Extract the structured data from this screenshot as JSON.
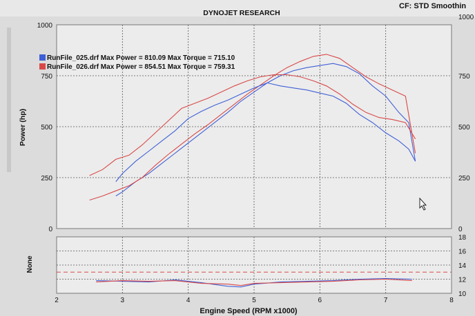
{
  "header": {
    "title": "DYNOJET RESEARCH",
    "status": "CF: STD  Smoothin"
  },
  "colors": {
    "background": "#dcdcdc",
    "plot_background": "#ececec",
    "grid": "#555555",
    "run_025": "#3f5fd6",
    "run_026": "#d94848",
    "afr_reference": "#d94848"
  },
  "chart_data": [
    {
      "type": "line",
      "title": "",
      "xlabel": "",
      "ylabel": "Power (hp)",
      "xlim": [
        2,
        8
      ],
      "ylim": [
        0,
        1000
      ],
      "y2lim": [
        0,
        1000
      ],
      "left_ticks": [
        "0",
        "250",
        "500",
        "750",
        "1000"
      ],
      "right_ticks": [
        "0",
        "250",
        "500",
        "750",
        "1000"
      ],
      "grid": true,
      "legend_position": "top-left",
      "legend": [
        {
          "swatch": "run_025",
          "text": "RunFile_025.drf Max Power = 810.09 Max Torque = 715.10"
        },
        {
          "swatch": "run_026",
          "text": "RunFile_026.drf Max Power = 854.51 Max Torque = 759.31"
        }
      ],
      "series": [
        {
          "run": "025",
          "measure": "power",
          "color": "#3f5fd6",
          "x": [
            2.9,
            3.0,
            3.2,
            3.4,
            3.6,
            3.8,
            4.0,
            4.2,
            4.4,
            4.6,
            4.8,
            5.0,
            5.2,
            5.4,
            5.6,
            5.8,
            6.0,
            6.2,
            6.4,
            6.6,
            6.8,
            7.0,
            7.2,
            7.35,
            7.45
          ],
          "y": [
            160,
            180,
            230,
            270,
            320,
            370,
            420,
            470,
            520,
            570,
            625,
            670,
            715,
            750,
            775,
            790,
            800,
            810,
            795,
            760,
            700,
            650,
            570,
            520,
            330
          ]
        },
        {
          "run": "026",
          "measure": "power",
          "color": "#d94848",
          "x": [
            2.5,
            2.7,
            2.9,
            3.1,
            3.3,
            3.5,
            3.7,
            3.9,
            4.1,
            4.3,
            4.5,
            4.7,
            4.9,
            5.1,
            5.3,
            5.5,
            5.7,
            5.9,
            6.1,
            6.3,
            6.5,
            6.7,
            6.9,
            7.1,
            7.3,
            7.45
          ],
          "y": [
            140,
            160,
            185,
            210,
            250,
            310,
            365,
            415,
            465,
            510,
            560,
            610,
            660,
            705,
            750,
            790,
            820,
            845,
            855,
            835,
            790,
            745,
            710,
            680,
            650,
            370
          ]
        },
        {
          "run": "025",
          "measure": "torque",
          "color": "#3f5fd6",
          "x": [
            2.9,
            3.0,
            3.2,
            3.4,
            3.6,
            3.8,
            4.0,
            4.2,
            4.4,
            4.6,
            4.8,
            5.0,
            5.2,
            5.4,
            5.6,
            5.8,
            6.0,
            6.2,
            6.4,
            6.6,
            6.8,
            7.0,
            7.2,
            7.35,
            7.45
          ],
          "y": [
            230,
            270,
            330,
            380,
            430,
            480,
            540,
            575,
            605,
            630,
            660,
            690,
            715,
            700,
            690,
            680,
            665,
            650,
            615,
            560,
            520,
            470,
            430,
            390,
            330
          ]
        },
        {
          "run": "026",
          "measure": "torque",
          "color": "#d94848",
          "x": [
            2.5,
            2.7,
            2.9,
            3.1,
            3.3,
            3.5,
            3.7,
            3.9,
            4.1,
            4.3,
            4.5,
            4.7,
            4.9,
            5.1,
            5.3,
            5.5,
            5.7,
            5.9,
            6.1,
            6.3,
            6.5,
            6.7,
            6.9,
            7.1,
            7.3,
            7.45
          ],
          "y": [
            260,
            290,
            340,
            360,
            410,
            470,
            530,
            590,
            615,
            640,
            670,
            700,
            725,
            745,
            755,
            755,
            745,
            725,
            700,
            660,
            610,
            570,
            545,
            535,
            520,
            440
          ]
        }
      ]
    },
    {
      "type": "line",
      "title": "",
      "xlabel": "Engine Speed (RPM x1000)",
      "ylabel": "None",
      "xlim": [
        2,
        8
      ],
      "ylim": [
        10,
        18
      ],
      "x_ticks": [
        "2",
        "3",
        "4",
        "5",
        "6",
        "7",
        "8"
      ],
      "right_ticks": [
        "10",
        "12",
        "14",
        "16",
        "18"
      ],
      "grid": true,
      "reference_line": {
        "y": 13,
        "color": "#d94848"
      },
      "series": [
        {
          "run": "025",
          "color": "#3f5fd6",
          "x": [
            2.6,
            3.0,
            3.4,
            3.8,
            4.2,
            4.6,
            4.8,
            5.0,
            5.4,
            5.8,
            6.2,
            6.6,
            7.0,
            7.4
          ],
          "y": [
            11.8,
            11.7,
            11.6,
            11.9,
            11.5,
            11.0,
            10.9,
            11.3,
            11.6,
            11.7,
            11.8,
            12.0,
            12.1,
            12.0
          ]
        },
        {
          "run": "026",
          "color": "#d94848",
          "x": [
            2.6,
            3.0,
            3.4,
            3.8,
            4.2,
            4.6,
            4.8,
            5.0,
            5.4,
            5.8,
            6.2,
            6.6,
            7.0,
            7.4
          ],
          "y": [
            11.6,
            11.8,
            11.7,
            11.8,
            11.4,
            11.3,
            11.1,
            11.4,
            11.5,
            11.6,
            11.7,
            11.9,
            12.0,
            11.8
          ]
        }
      ]
    }
  ]
}
